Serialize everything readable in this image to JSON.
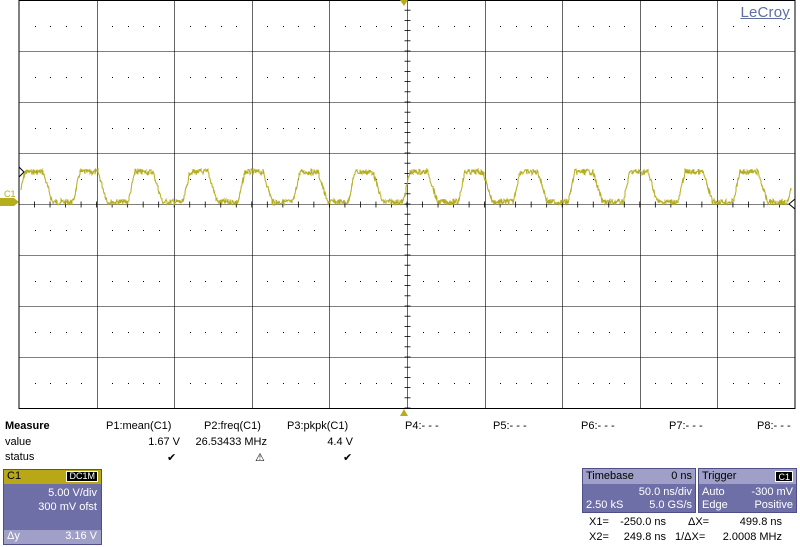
{
  "logo": "LeCroy",
  "channel_marker": "C1",
  "colors": {
    "trace": "#b5ad1e",
    "grid": "#000000",
    "panel": "#6f6fa8",
    "panel_header": "#9f9fc8",
    "channel": "#b8a817"
  },
  "waveform": {
    "type": "square-ish noisy wave",
    "cycles": 14,
    "volts_per_div": 5.0
  },
  "measure": {
    "header": "Measure",
    "columns": [
      "P1:mean(C1)",
      "P2:freq(C1)",
      "P3:pkpk(C1)",
      "P4:- - -",
      "P5:- - -",
      "P6:- - -",
      "P7:- - -",
      "P8:- - -"
    ],
    "row_labels": {
      "value": "value",
      "status": "status"
    },
    "values": [
      "1.67 V",
      "26.53433 MHz",
      "4.4 V"
    ],
    "status_icons": [
      "check-icon",
      "warning-icon",
      "check-icon"
    ],
    "status_glyphs": [
      "✔",
      "⚠",
      "✔"
    ]
  },
  "channel_box": {
    "name": "C1",
    "coupling": "DC1M",
    "volts_div": "5.00 V/div",
    "offset": "300 mV ofst",
    "dy_label": "Δy",
    "dy_value": "3.16 V"
  },
  "timebase": {
    "label": "Timebase",
    "delay": "0 ns",
    "time_div": "50.0 ns/div",
    "samples": "2.50 kS",
    "rate": "5.0 GS/s"
  },
  "trigger": {
    "label": "Trigger",
    "badge": "C1",
    "mode": "Auto",
    "level": "-300 mV",
    "type": "Edge",
    "slope": "Positive"
  },
  "cursors": {
    "x1_label": "X1=",
    "x1_value": "-250.0 ns",
    "dx_label": "ΔX=",
    "dx_value": "499.8 ns",
    "x2_label": "X2=",
    "x2_value": "249.8 ns",
    "inv_label": "1/ΔX=",
    "inv_value": "2.0008 MHz"
  }
}
